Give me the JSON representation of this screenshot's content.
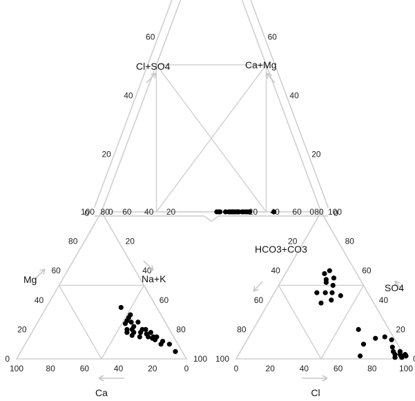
{
  "chart_data": {
    "type": "scatter",
    "subtype": "piper",
    "title": "",
    "grid": true,
    "tick_values": [
      0,
      20,
      40,
      60,
      80,
      100
    ],
    "axis_labels": {
      "cation_bottom": "Ca",
      "cation_left": "Mg",
      "cation_right": "Na+K",
      "anion_bottom": "Cl",
      "anion_right": "SO4",
      "anion_left": "HCO3+CO3",
      "diamond_upper_left": "Cl+SO4",
      "diamond_upper_right": "Ca+Mg"
    },
    "cation_points": [
      {
        "ca": 18,
        "mg": 30
      },
      {
        "ca": 20,
        "mg": 28
      },
      {
        "ca": 22,
        "mg": 26
      },
      {
        "ca": 20,
        "mg": 25
      },
      {
        "ca": 24,
        "mg": 24
      },
      {
        "ca": 20,
        "mg": 22
      },
      {
        "ca": 22,
        "mg": 20
      },
      {
        "ca": 25,
        "mg": 20
      },
      {
        "ca": 22,
        "mg": 18
      },
      {
        "ca": 26,
        "mg": 18
      },
      {
        "ca": 18,
        "mg": 18
      },
      {
        "ca": 20,
        "mg": 15
      },
      {
        "ca": 24,
        "mg": 16
      },
      {
        "ca": 16,
        "mg": 20
      },
      {
        "ca": 14,
        "mg": 20
      },
      {
        "ca": 15,
        "mg": 17
      },
      {
        "ca": 15,
        "mg": 15
      },
      {
        "ca": 13,
        "mg": 14
      },
      {
        "ca": 12,
        "mg": 15
      },
      {
        "ca": 12,
        "mg": 13
      },
      {
        "ca": 10,
        "mg": 15
      },
      {
        "ca": 10,
        "mg": 10
      },
      {
        "ca": 8,
        "mg": 12
      },
      {
        "ca": 5,
        "mg": 10
      },
      {
        "ca": 4,
        "mg": 5
      },
      {
        "ca": 21,
        "mg": 35
      },
      {
        "ca": 16,
        "mg": 25
      },
      {
        "ca": 12,
        "mg": 18
      }
    ],
    "anion_points": [
      {
        "cl": 25,
        "so4": 60
      },
      {
        "cl": 23,
        "so4": 58
      },
      {
        "cl": 26,
        "so4": 54
      },
      {
        "cl": 27,
        "so4": 52
      },
      {
        "cl": 30,
        "so4": 55
      },
      {
        "cl": 32,
        "so4": 50
      },
      {
        "cl": 30,
        "so4": 45
      },
      {
        "cl": 34,
        "so4": 45
      },
      {
        "cl": 36,
        "so4": 40
      },
      {
        "cl": 31,
        "so4": 38
      },
      {
        "cl": 40,
        "so4": 43
      },
      {
        "cl": 25,
        "so4": 45
      },
      {
        "cl": 62,
        "so4": 20
      },
      {
        "cl": 70,
        "so4": 10
      },
      {
        "cl": 72,
        "so4": 2
      },
      {
        "cl": 75,
        "so4": 14
      },
      {
        "cl": 80,
        "so4": 15
      },
      {
        "cl": 85,
        "so4": 13
      },
      {
        "cl": 88,
        "so4": 8
      },
      {
        "cl": 90,
        "so4": 5
      },
      {
        "cl": 92,
        "so4": 3
      },
      {
        "cl": 94,
        "so4": 5
      },
      {
        "cl": 95,
        "so4": 3
      },
      {
        "cl": 96,
        "so4": 2
      },
      {
        "cl": 97,
        "so4": 1
      },
      {
        "cl": 98,
        "so4": 3
      },
      {
        "cl": 93,
        "so4": 1
      },
      {
        "cl": 99,
        "so4": 2
      }
    ]
  }
}
